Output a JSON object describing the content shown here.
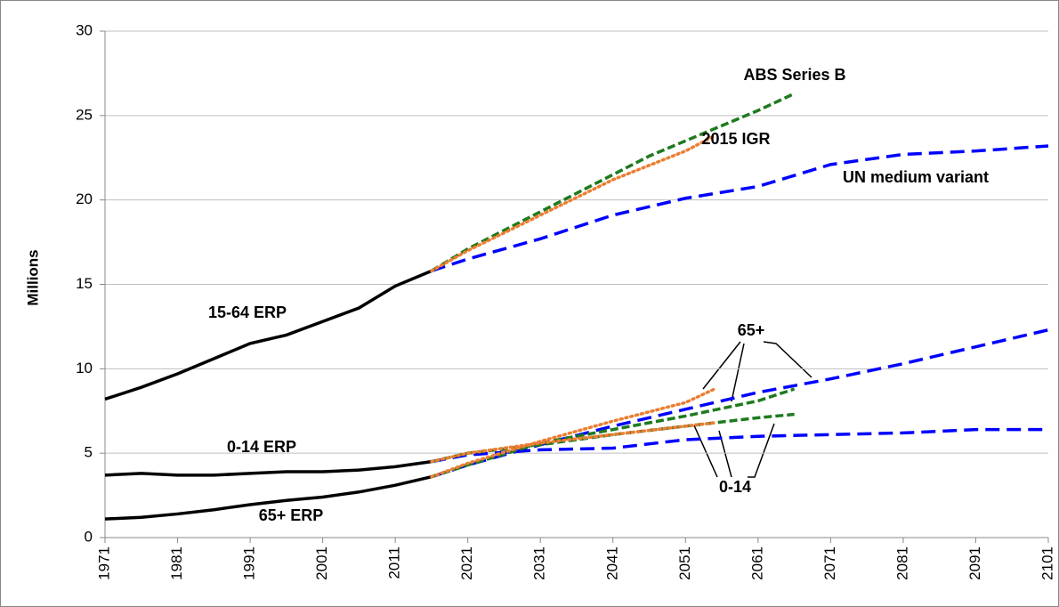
{
  "chart_data": {
    "type": "line",
    "y_label": "Millions",
    "xlim": [
      1971,
      2101
    ],
    "xticks": [
      1971,
      1981,
      1991,
      2001,
      2011,
      2021,
      2031,
      2041,
      2051,
      2061,
      2071,
      2081,
      2091,
      2101
    ],
    "ylim": [
      0,
      30
    ],
    "yticks": [
      0,
      5,
      10,
      15,
      20,
      25,
      30
    ],
    "grid": true,
    "series": [
      {
        "color": "#000000",
        "style": "solid",
        "x": [
          1971,
          1976,
          1981,
          1986,
          1991,
          1996,
          2001,
          2006,
          2011,
          2016
        ],
        "values": [
          8.2,
          8.9,
          9.7,
          10.6,
          11.5,
          12.0,
          12.8,
          13.6,
          14.9,
          15.8
        ]
      },
      {
        "color": "#000000",
        "style": "solid",
        "x": [
          1971,
          1976,
          1981,
          1986,
          1991,
          1996,
          2001,
          2006,
          2011,
          2016
        ],
        "values": [
          3.7,
          3.8,
          3.7,
          3.7,
          3.8,
          3.9,
          3.9,
          4.0,
          4.2,
          4.5
        ]
      },
      {
        "color": "#000000",
        "style": "solid",
        "x": [
          1971,
          1976,
          1981,
          1986,
          1991,
          1996,
          2001,
          2006,
          2011,
          2016
        ],
        "values": [
          1.1,
          1.2,
          1.4,
          1.65,
          1.95,
          2.2,
          2.4,
          2.7,
          3.1,
          3.6
        ]
      },
      {
        "color": "#0000ff",
        "style": "long-dash",
        "x": [
          2016,
          2021,
          2031,
          2041,
          2051,
          2061,
          2071,
          2081,
          2091,
          2101
        ],
        "values": [
          15.8,
          16.5,
          17.7,
          19.1,
          20.1,
          20.8,
          22.1,
          22.7,
          22.9,
          23.2
        ]
      },
      {
        "color": "#0000ff",
        "style": "long-dash",
        "x": [
          2016,
          2021,
          2031,
          2041,
          2051,
          2061,
          2071,
          2081,
          2091,
          2101
        ],
        "values": [
          3.6,
          4.3,
          5.5,
          6.6,
          7.6,
          8.6,
          9.4,
          10.3,
          11.3,
          12.3
        ]
      },
      {
        "color": "#0000ff",
        "style": "long-dash",
        "x": [
          2016,
          2021,
          2031,
          2041,
          2051,
          2061,
          2071,
          2081,
          2091,
          2101
        ],
        "values": [
          4.5,
          4.9,
          5.2,
          5.3,
          5.8,
          6.0,
          6.1,
          6.2,
          6.4,
          6.4
        ]
      },
      {
        "color": "#1e7a1e",
        "style": "dashed",
        "x": [
          2016,
          2021,
          2026,
          2031,
          2036,
          2041,
          2046,
          2051,
          2056,
          2061,
          2066
        ],
        "values": [
          15.8,
          17.1,
          18.2,
          19.3,
          20.4,
          21.5,
          22.6,
          23.5,
          24.4,
          25.3,
          26.3
        ]
      },
      {
        "color": "#1e7a1e",
        "style": "dashed",
        "x": [
          2016,
          2021,
          2031,
          2041,
          2051,
          2061,
          2066
        ],
        "values": [
          3.6,
          4.3,
          5.6,
          6.4,
          7.2,
          8.1,
          8.8
        ]
      },
      {
        "color": "#1e7a1e",
        "style": "dashed",
        "x": [
          2016,
          2021,
          2031,
          2041,
          2051,
          2061,
          2066
        ],
        "values": [
          4.5,
          5.0,
          5.5,
          6.1,
          6.6,
          7.1,
          7.3
        ]
      },
      {
        "color": "#ed7d31",
        "style": "dotted",
        "x": [
          2016,
          2021,
          2031,
          2041,
          2051,
          2055
        ],
        "values": [
          15.8,
          17.0,
          19.1,
          21.2,
          22.9,
          23.8
        ]
      },
      {
        "color": "#ed7d31",
        "style": "dotted",
        "x": [
          2016,
          2021,
          2031,
          2041,
          2051,
          2055
        ],
        "values": [
          3.6,
          4.4,
          5.7,
          6.9,
          8.0,
          8.8
        ]
      },
      {
        "color": "#ed7d31",
        "style": "dotted",
        "x": [
          2016,
          2021,
          2031,
          2041,
          2051,
          2055
        ],
        "values": [
          4.5,
          5.0,
          5.6,
          6.1,
          6.6,
          6.8
        ]
      }
    ],
    "annotations": [
      {
        "text": "ABS Series B",
        "color": "#1e7a1e"
      },
      {
        "text": "2015 IGR",
        "color": "#ed7d31"
      },
      {
        "text": "UN medium variant",
        "color": "#0000ff"
      },
      {
        "text": "15-64 ERP",
        "color": "#000000"
      },
      {
        "text": "65+",
        "color": "#000000"
      },
      {
        "text": "0-14 ERP",
        "color": "#000000"
      },
      {
        "text": "0-14",
        "color": "#000000"
      },
      {
        "text": "65+ ERP",
        "color": "#000000"
      }
    ]
  }
}
